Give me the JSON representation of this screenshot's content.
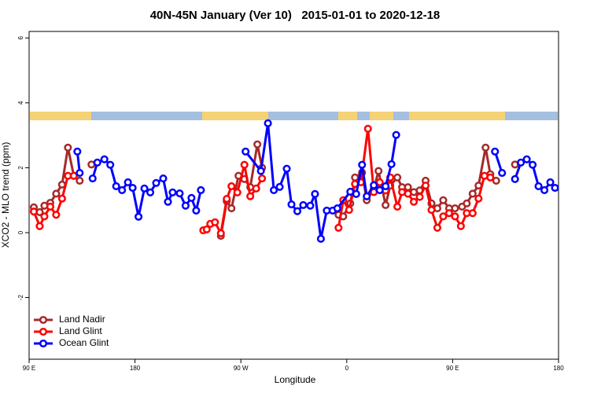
{
  "chart_data": {
    "type": "line",
    "title": "40N-45N January (Ver 10)   2015-01-01 to 2020-12-18",
    "x_label": "Longitude",
    "y_label": "XCO2 - MLO trend (ppm)",
    "xlim": [
      90,
      540
    ],
    "xticks": [
      {
        "value": 90,
        "label": "90 E"
      },
      180,
      {
        "value": 270,
        "label": "90 W"
      },
      {
        "value": 360,
        "label": "0"
      },
      {
        "value": 450,
        "label": "90 E"
      },
      {
        "value": 540,
        "label": "180"
      }
    ],
    "ylim": [
      -3.9,
      6.2
    ],
    "yticks": [
      -2,
      0,
      2,
      4,
      6
    ],
    "legend": "bottom-left",
    "series": [
      {
        "name": "Land Nadir",
        "color": "#a52a2a",
        "x": [
          94,
          99,
          103,
          108,
          113,
          118,
          123,
          128,
          133,
          null,
          143,
          null,
          253,
          258,
          262,
          268,
          273,
          278,
          284,
          288,
          null,
          353,
          357,
          363,
          367,
          373,
          377,
          383,
          387,
          393,
          397,
          403,
          407,
          412,
          417,
          422,
          427,
          432,
          437,
          442,
          447,
          452,
          458,
          462,
          467,
          472,
          478,
          482,
          487,
          null,
          503
        ],
        "values": [
          0.78,
          0.63,
          0.83,
          0.92,
          1.2,
          1.48,
          2.62,
          1.75,
          1.6,
          null,
          2.1,
          null,
          -0.1,
          0.97,
          0.75,
          1.75,
          1.65,
          1.4,
          2.72,
          2.0,
          null,
          0.55,
          0.5,
          0.9,
          1.7,
          1.85,
          1.0,
          1.35,
          1.9,
          0.85,
          1.45,
          1.7,
          1.4,
          1.4,
          1.25,
          1.3,
          1.6,
          0.9,
          0.75,
          1.0,
          0.75,
          0.75,
          0.8,
          0.9,
          1.2,
          1.45,
          2.62,
          1.8,
          1.6,
          null,
          2.1
        ]
      },
      {
        "name": "Land Glint",
        "color": "#ff0000",
        "x": [
          94,
          99,
          103,
          108,
          113,
          118,
          123,
          128,
          null,
          238,
          241,
          244,
          248,
          253,
          258,
          262,
          267,
          273,
          278,
          283,
          288,
          null,
          353,
          357,
          362,
          367,
          372,
          378,
          383,
          388,
          393,
          397,
          403,
          407,
          412,
          417,
          422,
          427,
          432,
          437,
          442,
          447,
          452,
          457,
          462,
          467,
          472,
          477,
          482
        ],
        "values": [
          0.65,
          0.2,
          0.5,
          0.8,
          0.55,
          1.05,
          1.75,
          1.75,
          null,
          0.07,
          0.1,
          0.27,
          0.32,
          -0.02,
          1.04,
          1.43,
          1.24,
          2.09,
          1.12,
          1.36,
          1.67,
          null,
          0.15,
          1.0,
          0.7,
          1.5,
          1.55,
          3.2,
          1.25,
          1.55,
          1.3,
          1.7,
          0.8,
          1.25,
          1.2,
          0.95,
          1.1,
          1.45,
          0.7,
          0.15,
          0.5,
          0.6,
          0.5,
          0.2,
          0.6,
          0.6,
          1.05,
          1.75,
          1.7
        ]
      },
      {
        "name": "Ocean Glint",
        "color": "#0000ff",
        "x": [
          131,
          133,
          null,
          144,
          148,
          154,
          159,
          164,
          169,
          174,
          178,
          183,
          188,
          193,
          198,
          204,
          208,
          212,
          218,
          223,
          228,
          232,
          236,
          null,
          274,
          287,
          293,
          298,
          303,
          309,
          313,
          318,
          323,
          329,
          333,
          338,
          343,
          348,
          352,
          363,
          368,
          373,
          377,
          383,
          388,
          393,
          398,
          402,
          null,
          486,
          492,
          null,
          503,
          508,
          513,
          518,
          523,
          528,
          533,
          537
        ],
        "values": [
          2.5,
          1.84,
          null,
          1.67,
          2.16,
          2.26,
          2.09,
          1.43,
          1.31,
          1.55,
          1.38,
          0.49,
          1.36,
          1.24,
          1.53,
          1.67,
          0.95,
          1.24,
          1.21,
          0.83,
          1.07,
          0.68,
          1.31,
          null,
          2.5,
          1.9,
          3.37,
          1.31,
          1.41,
          1.97,
          0.87,
          0.66,
          0.85,
          0.83,
          1.19,
          -0.19,
          0.68,
          0.68,
          0.75,
          1.26,
          1.19,
          2.09,
          1.12,
          1.46,
          1.31,
          1.43,
          2.11,
          3.01,
          null,
          2.5,
          1.84,
          null,
          1.65,
          2.16,
          2.26,
          2.09,
          1.43,
          1.31,
          1.55,
          1.38
        ]
      }
    ]
  }
}
